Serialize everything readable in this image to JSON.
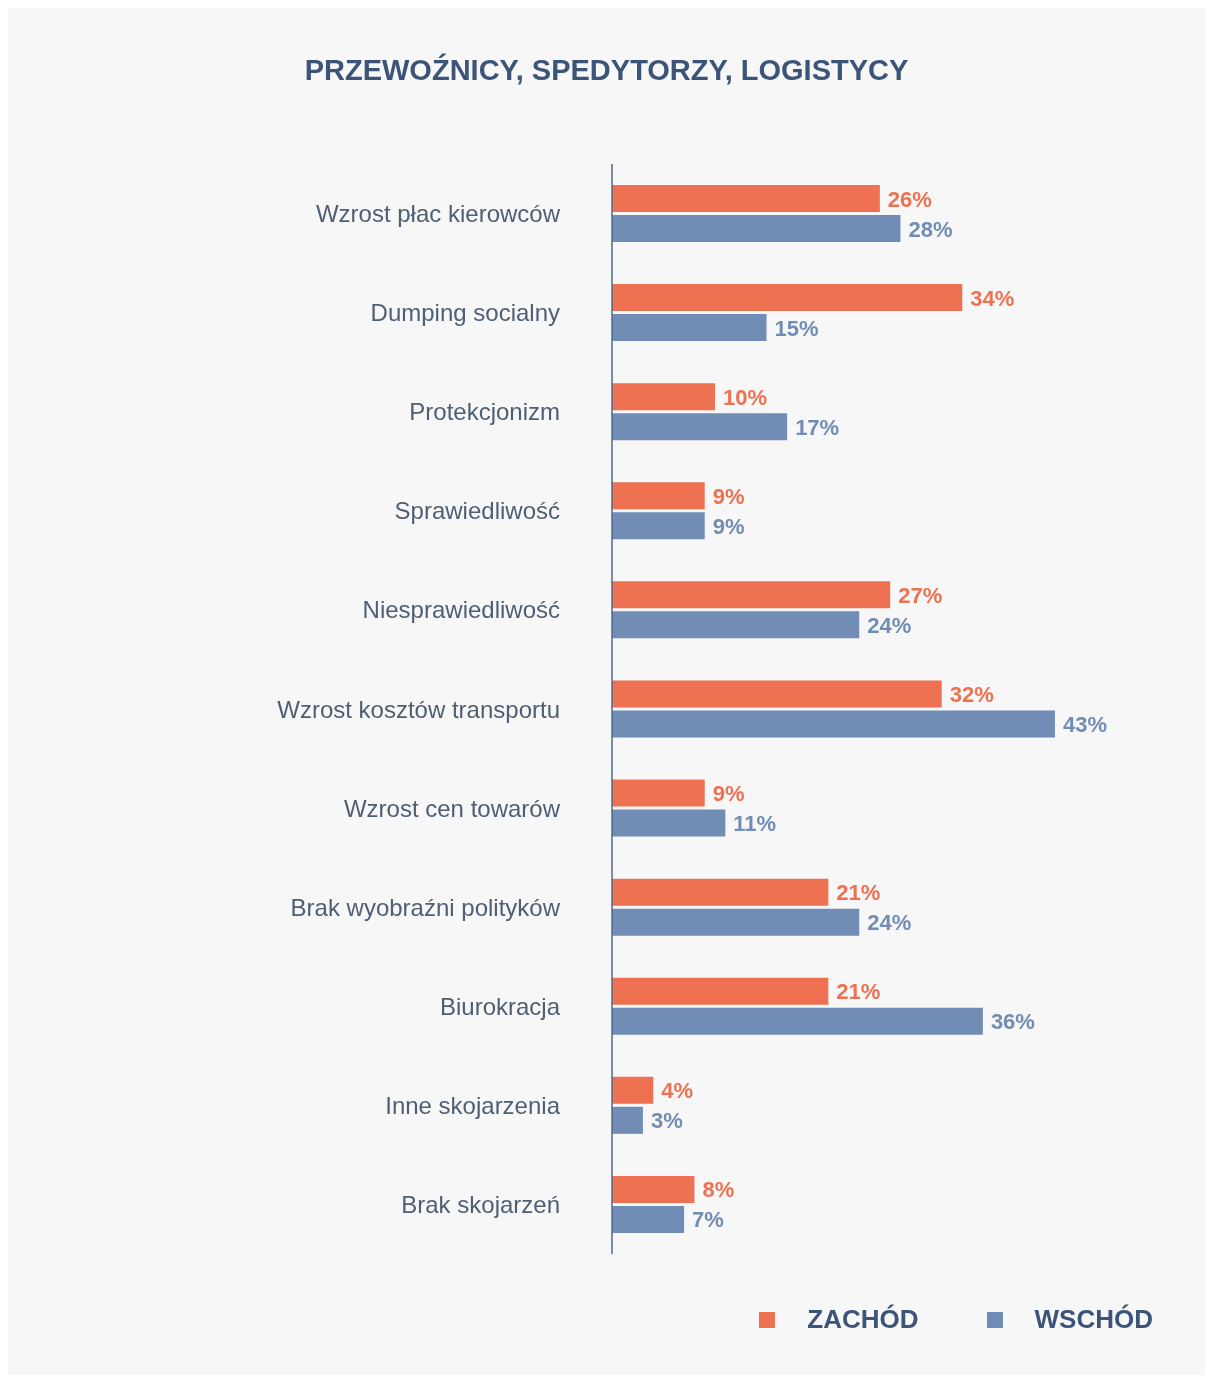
{
  "chart_data": {
    "type": "bar",
    "orientation": "horizontal",
    "title": "PRZEWOŹNICY, SPEDYTORZY, LOGISTYCY",
    "categories": [
      "Wzrost płac kierowców",
      "Dumping socialny",
      "Protekcjonizm",
      "Sprawiedliwość",
      "Niesprawiedliwość",
      "Wzrost kosztów transportu",
      "Wzrost cen towarów",
      "Brak wyobraźni polityków",
      "Biurokracja",
      "Inne skojarzenia",
      "Brak skojarzeń"
    ],
    "series": [
      {
        "name": "ZACHÓD",
        "color": "#ee7151",
        "values": [
          26,
          34,
          10,
          9,
          27,
          32,
          9,
          21,
          21,
          4,
          8
        ],
        "value_labels": [
          "26%",
          "34%",
          "10%",
          "9%",
          "27%",
          "32%",
          "9%",
          "21%",
          "21%",
          "4%",
          "8%"
        ]
      },
      {
        "name": "WSCHÓD",
        "color": "#718db5",
        "values": [
          28,
          15,
          17,
          9,
          24,
          43,
          11,
          24,
          36,
          3,
          7
        ],
        "value_labels": [
          "28%",
          "15%",
          "17%",
          "9%",
          "24%",
          "43%",
          "11%",
          "24%",
          "36%",
          "3%",
          "7%"
        ]
      }
    ],
    "legend": "bottom right",
    "grid": false,
    "tick_labels": "y"
  }
}
